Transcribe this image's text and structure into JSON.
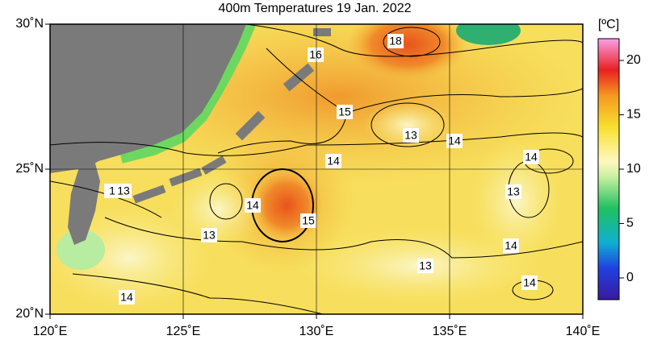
{
  "header": {
    "title": "400m Temperatures  19 Jan. 2022"
  },
  "axes": {
    "lonlim": [
      120,
      140
    ],
    "latlim": [
      20,
      30
    ],
    "xticks": [
      {
        "value": 120,
        "label": "120˚E"
      },
      {
        "value": 125,
        "label": "125˚E"
      },
      {
        "value": 130,
        "label": "130˚E"
      },
      {
        "value": 135,
        "label": "135˚E"
      },
      {
        "value": 140,
        "label": "140˚E"
      }
    ],
    "yticks": [
      {
        "value": 20,
        "label": "20˚N"
      },
      {
        "value": 25,
        "label": "25˚N"
      },
      {
        "value": 30,
        "label": "30˚N"
      }
    ]
  },
  "colorbar": {
    "label": "[ºC]",
    "lim": [
      -2,
      22
    ],
    "ticks": [
      0,
      5,
      10,
      15,
      20
    ]
  },
  "contour_labels": [
    "18",
    "16",
    "15",
    "13",
    "14",
    "14",
    "14",
    "1",
    "13",
    "14",
    "13",
    "15",
    "13",
    "14",
    "13",
    "14",
    "14"
  ]
}
